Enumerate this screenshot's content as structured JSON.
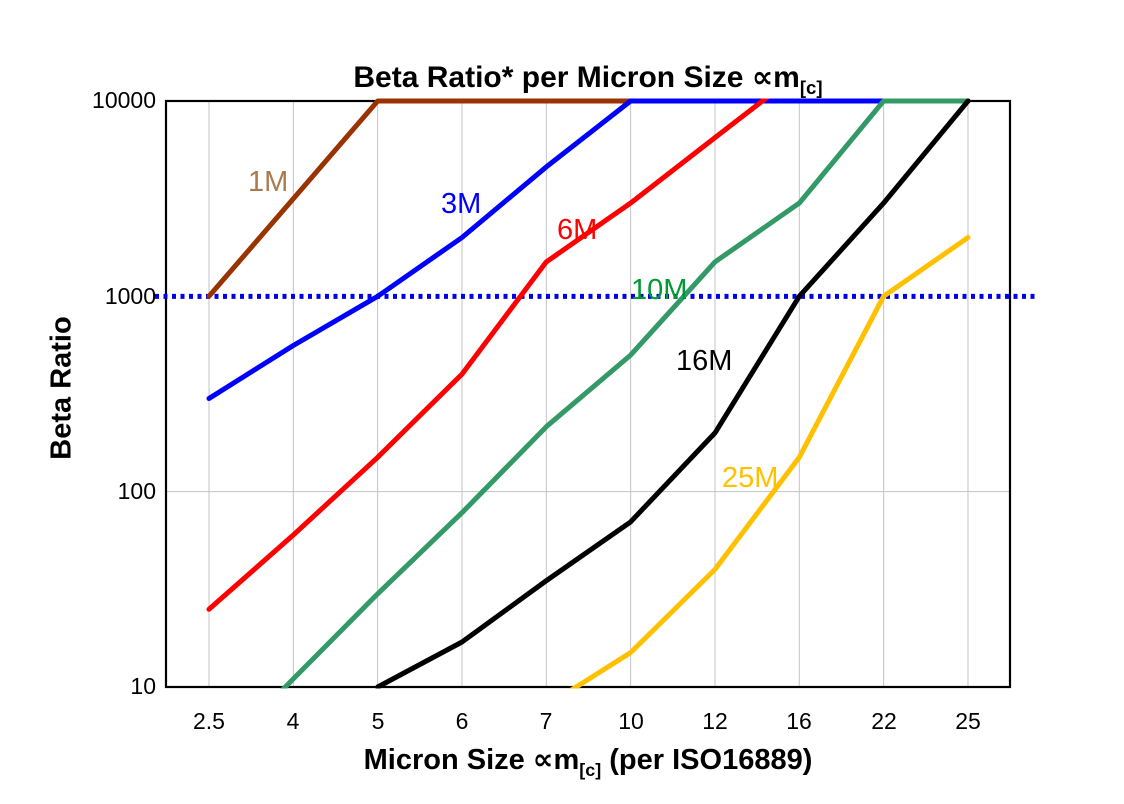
{
  "chart_data": {
    "type": "line",
    "log_y": true,
    "title_prefix": "Beta Ratio* per Micron Size ∝m",
    "title_sub": "[c]",
    "ylabel": "Beta Ratio",
    "xlabel_prefix": "Micron Size ∝m",
    "xlabel_sub": "[c]",
    "xlabel_suffix": " (per ISO16889)",
    "categories": [
      "2.5",
      "4",
      "5",
      "6",
      "7",
      "10",
      "12",
      "16",
      "22",
      "25"
    ],
    "ytick_labels": [
      "10000",
      "1000",
      "100",
      "10"
    ],
    "ylim": [
      10,
      10000
    ],
    "grid_color": "#c3c3c3",
    "axis_color": "#000000",
    "legend_position": "inline-labels",
    "reference_line": {
      "value": 1000,
      "color": "#0000ee",
      "style": "dotted"
    },
    "series": [
      {
        "label": "1M",
        "color": "#993300",
        "label_color": "#a97c50",
        "values": [
          1000,
          3160,
          10000,
          10000,
          10000,
          10000,
          10000,
          10000,
          10000,
          10000
        ]
      },
      {
        "label": "3M",
        "color": "#0000ff",
        "label_color": "#0000ff",
        "values": [
          300,
          560,
          1000,
          2000,
          4600,
          10000,
          10000,
          10000,
          10000,
          10000
        ]
      },
      {
        "label": "6M",
        "color": "#ff0000",
        "label_color": "#ff0000",
        "values": [
          25,
          60,
          150,
          400,
          1500,
          3000,
          6500,
          14000,
          null,
          null
        ]
      },
      {
        "label": "10M",
        "color": "#339966",
        "label_color": "#009933",
        "values": [
          4,
          11,
          30,
          78,
          215,
          500,
          1500,
          3000,
          10000,
          10000
        ]
      },
      {
        "label": "16M",
        "color": "#000000",
        "label_color": "#000000",
        "values": [
          null,
          null,
          10,
          17,
          35,
          70,
          200,
          1000,
          3000,
          10000
        ]
      },
      {
        "label": "25M",
        "color": "#ffc000",
        "label_color": "#ffc000",
        "values": [
          null,
          null,
          null,
          null,
          8,
          15,
          40,
          150,
          1000,
          2000
        ]
      }
    ]
  }
}
